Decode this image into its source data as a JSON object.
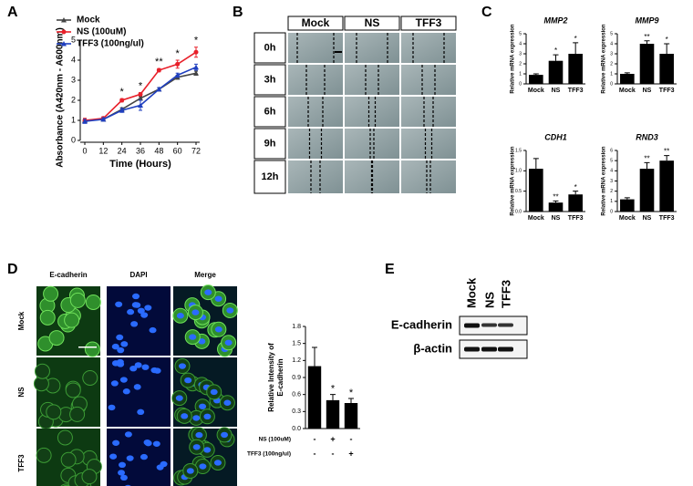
{
  "panels": [
    "A",
    "B",
    "C",
    "D",
    "E"
  ],
  "wound_healing": {
    "columns": [
      "Mock",
      "NS",
      "TFF3"
    ],
    "rows": [
      "0h",
      "3h",
      "6h",
      "9h",
      "12h"
    ]
  },
  "immunofluorescence": {
    "columns": [
      "E-cadherin",
      "DAPI",
      "Merge"
    ],
    "rows": [
      "Mock",
      "NS",
      "TFF3"
    ]
  },
  "western_blot": {
    "lanes": [
      "Mock",
      "NS",
      "TFF3"
    ],
    "rows": [
      "E-cadherin",
      "β-actin"
    ]
  },
  "chart_data": [
    {
      "type": "line",
      "y_label": "Absorbance (A420nm - A600nm)",
      "x_label": "Time (Hours)",
      "x": [
        0,
        12,
        24,
        36,
        48,
        60,
        72
      ],
      "xlim": [
        0,
        72
      ],
      "xticks": [
        0,
        12,
        24,
        36,
        48,
        60,
        72
      ],
      "ylim": [
        0,
        5
      ],
      "yticks": [
        0,
        1,
        2,
        3,
        4,
        5
      ],
      "legend": "upper left",
      "series": [
        {
          "name": "Mock",
          "color": "#444444",
          "marker": "triangle",
          "values": [
            1.0,
            1.05,
            1.55,
            2.1,
            2.55,
            3.15,
            3.35
          ],
          "errors": [
            0.05,
            0.05,
            0.08,
            0.08,
            0.08,
            0.1,
            0.1
          ]
        },
        {
          "name": "NS (100uM)",
          "color": "#e8202a",
          "marker": "circle",
          "values": [
            1.0,
            1.1,
            2.0,
            2.3,
            3.5,
            3.8,
            4.4
          ],
          "errors": [
            0.1,
            0.08,
            0.08,
            0.08,
            0.08,
            0.2,
            0.25
          ]
        },
        {
          "name": "TFF3 (100ng/ul)",
          "color": "#1f3fbf",
          "marker": "triangle",
          "values": [
            0.95,
            1.05,
            1.5,
            1.75,
            2.55,
            3.25,
            3.65
          ],
          "errors": [
            0.1,
            0.08,
            0.1,
            0.25,
            0.08,
            0.1,
            0.15
          ]
        }
      ],
      "annotations": [
        null,
        null,
        "*",
        "*",
        "**",
        "*",
        "*"
      ]
    },
    {
      "type": "bar",
      "title": "MMP2",
      "y_label": "Relative mRNA expression",
      "categories": [
        "Mock",
        "NS",
        "TFF3"
      ],
      "values": [
        0.9,
        2.3,
        3.0
      ],
      "errors": [
        0.1,
        0.6,
        1.1
      ],
      "annotations": [
        null,
        "*",
        "*"
      ],
      "color": "#000000",
      "ylim": [
        0,
        5
      ],
      "yticks": [
        0,
        1,
        2,
        3,
        4,
        5
      ]
    },
    {
      "type": "bar",
      "title": "MMP9",
      "y_label": "Relative mRNA expression",
      "categories": [
        "Mock",
        "NS",
        "TFF3"
      ],
      "values": [
        1.0,
        4.0,
        3.0
      ],
      "errors": [
        0.1,
        0.3,
        1.0
      ],
      "annotations": [
        null,
        "**",
        "*"
      ],
      "color": "#000000",
      "ylim": [
        0,
        5
      ],
      "yticks": [
        0,
        1,
        2,
        3,
        4,
        5
      ]
    },
    {
      "type": "bar",
      "title": "CDH1",
      "y_label": "Relative mRNA expression",
      "categories": [
        "Mock",
        "NS",
        "TFF3"
      ],
      "values": [
        1.05,
        0.22,
        0.42
      ],
      "errors": [
        0.25,
        0.04,
        0.08
      ],
      "annotations": [
        null,
        "**",
        "*"
      ],
      "color": "#000000",
      "ylim": [
        0,
        1.5
      ],
      "yticks": [
        {
          "value": 0,
          "label": "0.0"
        },
        {
          "value": 0.5,
          "label": "0.5"
        },
        {
          "value": 1,
          "label": "1.0"
        },
        {
          "value": 1.5,
          "label": "1.5"
        }
      ]
    },
    {
      "type": "bar",
      "title": "RND3",
      "y_label": "Relative mRNA expression",
      "categories": [
        "Mock",
        "NS",
        "TFF3"
      ],
      "values": [
        1.2,
        4.2,
        5.0
      ],
      "errors": [
        0.15,
        0.6,
        0.5
      ],
      "annotations": [
        null,
        "**",
        "**"
      ],
      "color": "#000000",
      "ylim": [
        0,
        6
      ],
      "yticks": [
        0,
        1,
        2,
        3,
        4,
        5,
        6
      ]
    },
    {
      "type": "bar",
      "y_label": "Relative Intensity of E-cadherin",
      "categories": [
        null,
        null,
        null
      ],
      "values": [
        1.1,
        0.5,
        0.45
      ],
      "errors": [
        0.33,
        0.1,
        0.08
      ],
      "annotations": [
        null,
        "*",
        "*"
      ],
      "color": "#000000",
      "ylim": [
        0,
        1.8
      ],
      "yticks": [
        {
          "value": 0,
          "label": "0.0"
        },
        {
          "value": 0.3,
          "label": "0.3"
        },
        {
          "value": 0.6,
          "label": "0.6"
        },
        {
          "value": 0.9,
          "label": "0.9"
        },
        {
          "value": 1.2,
          "label": "1.2"
        },
        {
          "value": 1.5,
          "label": "1.5"
        },
        {
          "value": 1.8,
          "label": "1.8"
        }
      ],
      "conditions": [
        {
          "name": "NS (100uM)",
          "marks": [
            "-",
            "+",
            "-"
          ]
        },
        {
          "name": "TFF3 (100ng/ul)",
          "marks": [
            "-",
            "-",
            "+"
          ]
        }
      ]
    }
  ]
}
